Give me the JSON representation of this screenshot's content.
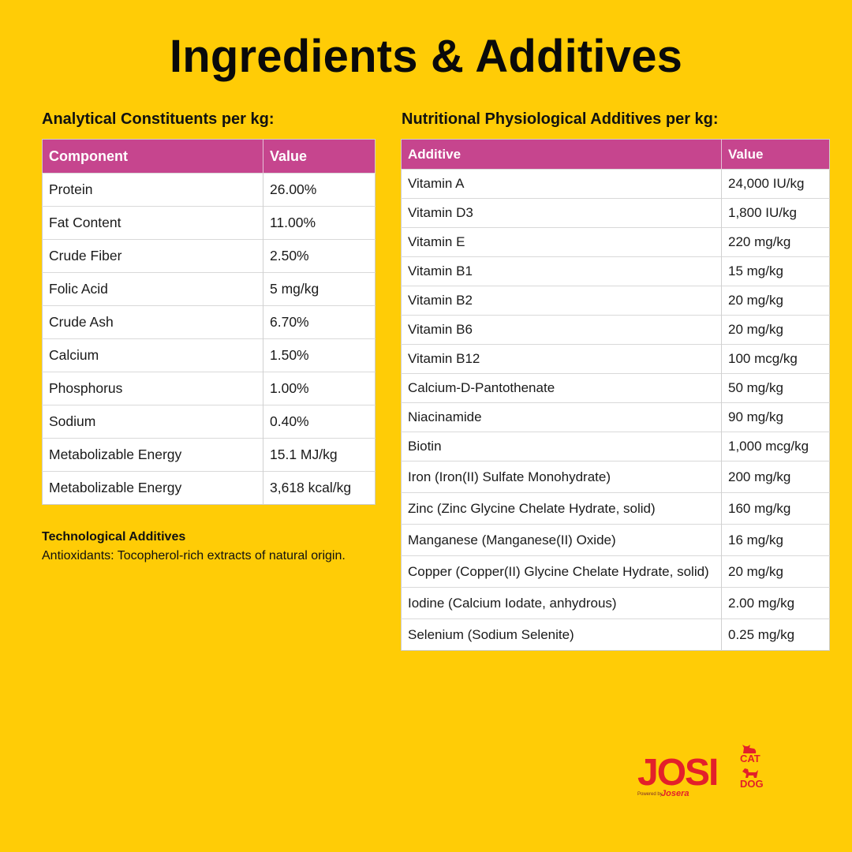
{
  "title": "Ingredients & Additives",
  "left": {
    "heading": "Analytical Constituents per kg:",
    "columns": [
      "Component",
      "Value"
    ],
    "rows": [
      [
        "Protein",
        "26.00%"
      ],
      [
        "Fat Content",
        "11.00%"
      ],
      [
        "Crude Fiber",
        "2.50%"
      ],
      [
        "Folic Acid",
        "5 mg/kg"
      ],
      [
        "Crude Ash",
        "6.70%"
      ],
      [
        "Calcium",
        "1.50%"
      ],
      [
        "Phosphorus",
        "1.00%"
      ],
      [
        "Sodium",
        "0.40%"
      ],
      [
        "Metabolizable Energy",
        "15.1 MJ/kg"
      ],
      [
        "Metabolizable Energy",
        "3,618 kcal/kg"
      ]
    ]
  },
  "right": {
    "heading": "Nutritional Physiological Additives per kg:",
    "columns": [
      "Additive",
      "Value"
    ],
    "rows": [
      [
        "Vitamin A",
        "24,000 IU/kg"
      ],
      [
        "Vitamin D3",
        "1,800 IU/kg"
      ],
      [
        "Vitamin E",
        "220 mg/kg"
      ],
      [
        "Vitamin B1",
        "15 mg/kg"
      ],
      [
        "Vitamin B2",
        "20 mg/kg"
      ],
      [
        "Vitamin B6",
        "20 mg/kg"
      ],
      [
        "Vitamin B12",
        "100 mcg/kg"
      ],
      [
        "Calcium-D-Pantothenate",
        "50 mg/kg"
      ],
      [
        "Niacinamide",
        "90 mg/kg"
      ],
      [
        "Biotin",
        "1,000 mcg/kg"
      ],
      [
        "Iron (Iron(II) Sulfate Monohydrate)",
        "200 mg/kg"
      ],
      [
        "Zinc (Zinc Glycine Chelate Hydrate, solid)",
        "160 mg/kg"
      ],
      [
        "Manganese (Manganese(II) Oxide)",
        "16 mg/kg"
      ],
      [
        "Copper (Copper(II) Glycine Chelate Hydrate, solid)",
        "20 mg/kg"
      ],
      [
        "Iodine (Calcium Iodate, anhydrous)",
        "2.00 mg/kg"
      ],
      [
        "Selenium (Sodium Selenite)",
        "0.25 mg/kg"
      ]
    ]
  },
  "tech": {
    "heading": "Technological Additives",
    "text": "Antioxidants: Tocopherol-rich extracts of natural origin."
  },
  "logo": {
    "main": "JOSI",
    "cat": "CAT",
    "dog": "DOG",
    "powered": "Powered by",
    "brand": "Josera"
  },
  "colors": {
    "background": "#FFCC06",
    "header": "#C6458E",
    "logo": "#E3202A"
  }
}
